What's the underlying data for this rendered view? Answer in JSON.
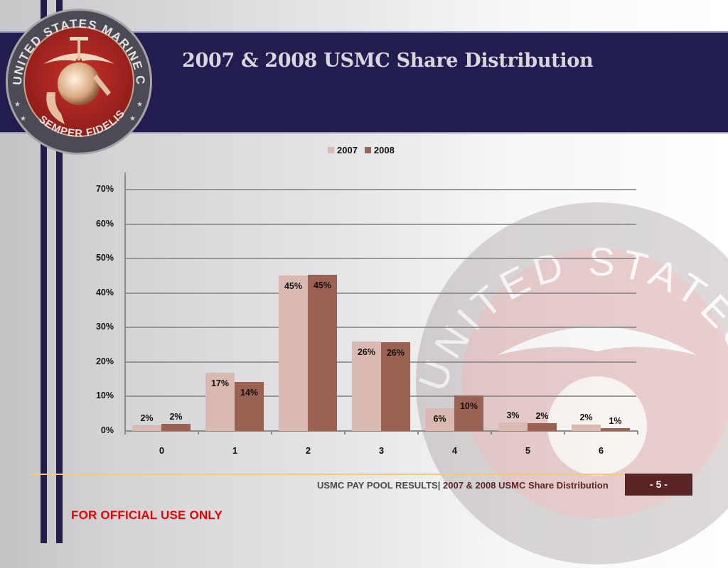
{
  "header": {
    "title": "2007 & 2008 USMC Share Distribution",
    "seal": {
      "icon": "usmc-seal-icon",
      "top_text": "UNITED STATES MARINE CORPS",
      "bottom_text": "SEMPER FIDELIS"
    }
  },
  "legend": {
    "items": [
      {
        "label": "2007",
        "color": "#d9b9b1"
      },
      {
        "label": "2008",
        "color": "#9b6253"
      }
    ]
  },
  "chart_data": {
    "type": "bar",
    "title": "",
    "xlabel": "",
    "ylabel": "",
    "categories": [
      "0",
      "1",
      "2",
      "3",
      "4",
      "5",
      "6"
    ],
    "series": [
      {
        "name": "2007",
        "color": "#d9b9b1",
        "values": [
          2,
          17,
          45,
          26,
          6,
          3,
          2
        ],
        "labels": [
          "2%",
          "17%",
          "45%",
          "26%",
          "6%",
          "3%",
          "2%"
        ]
      },
      {
        "name": "2008",
        "color": "#9b6253",
        "values": [
          2,
          14,
          45,
          26,
          10,
          2,
          1
        ],
        "labels": [
          "2%",
          "14%",
          "45%",
          "26%",
          "10%",
          "2%",
          "1%"
        ]
      }
    ],
    "ylim": [
      0,
      70
    ],
    "yticks": [
      "0%",
      "10%",
      "20%",
      "30%",
      "40%",
      "50%",
      "60%",
      "70%"
    ],
    "grid": true,
    "legend_position": "top",
    "bar_pixel_heights_hint": {
      "2007": [
        1.6,
        16.8,
        45,
        26,
        6.5,
        2.5,
        1.8
      ],
      "2008": [
        2,
        14.2,
        45.2,
        25.8,
        10.2,
        2.2,
        0.8
      ]
    }
  },
  "footer": {
    "section": "USMC PAY POOL RESULTS",
    "separator": "|",
    "subtitle": " 2007 & 2008 USMC Share Distribution",
    "page": "- 5 -",
    "classification": "FOR OFFICIAL USE ONLY"
  },
  "colors": {
    "header_navy": "#211d4f",
    "stripe_navy": "#231d4e",
    "page_badge": "#5a2424",
    "footer_line": "#f3c97b",
    "fouo_red": "#ee0000",
    "title_text": "#d6d6dc"
  }
}
